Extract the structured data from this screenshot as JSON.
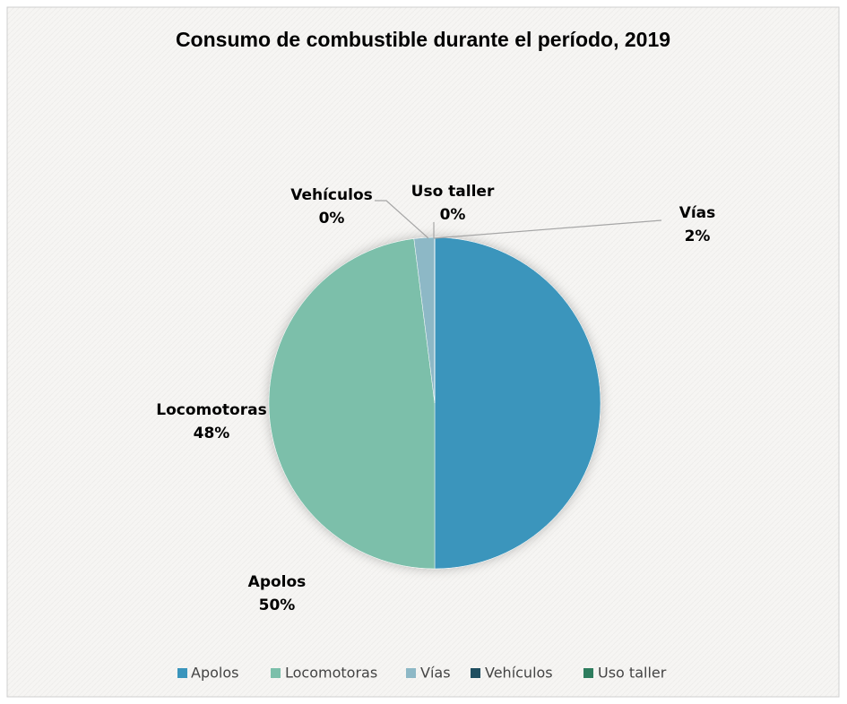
{
  "chart_data": {
    "type": "pie",
    "title": "Consumo de combustible durante el período, 2019",
    "categories": [
      "Apolos",
      "Locomotoras",
      "Vías",
      "Vehículos",
      "Uso taller"
    ],
    "values": [
      50,
      48,
      2,
      0,
      0
    ],
    "value_labels": [
      "50%",
      "48%",
      "2%",
      "0%",
      "0%"
    ],
    "colors": [
      "#3a95bc",
      "#7bbfaa",
      "#8db8c6",
      "#1f4e60",
      "#2e7d5e"
    ],
    "legend": "bottom"
  }
}
